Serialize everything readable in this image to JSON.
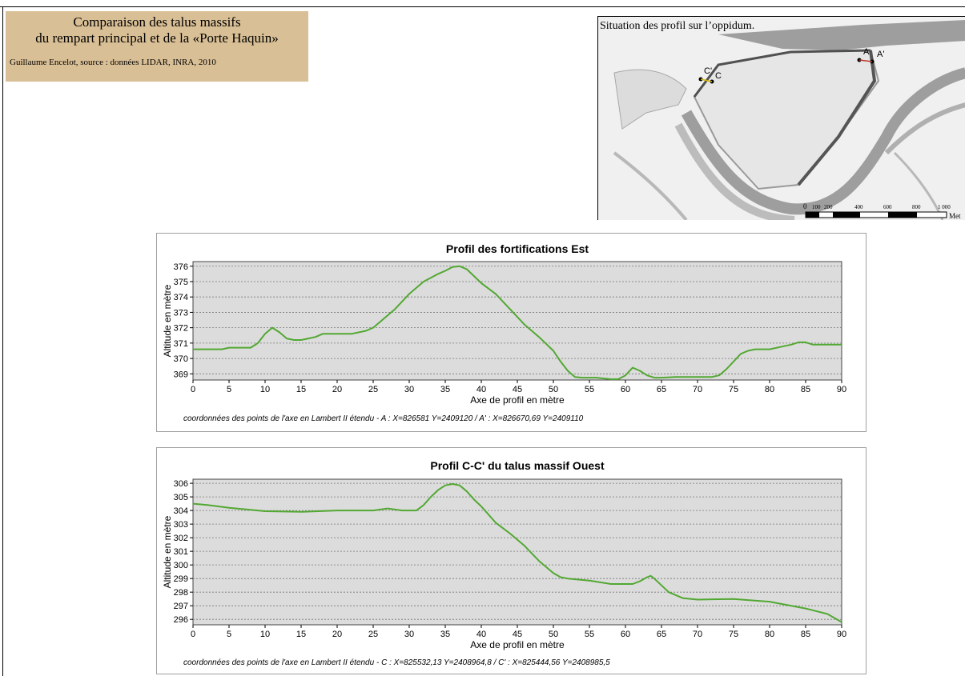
{
  "header": {
    "title_line1": "Comparaison des talus massifs",
    "title_line2": "du rempart principal et de la «Porte Haquin»",
    "credit": "Guillaume Encelot, source : données LIDAR, INRA, 2010"
  },
  "map": {
    "caption": "Situation des profil sur l’oppidum.",
    "point_labels": [
      "A",
      "A'",
      "C'",
      "C"
    ],
    "scale_labels": [
      "0",
      "100",
      "200",
      "400",
      "600",
      "800",
      "1 000"
    ],
    "scale_unit": "Met"
  },
  "chart_data": [
    {
      "type": "line",
      "title": "Profil des fortifications Est",
      "xlabel": "Axe de profil en mètre",
      "ylabel": "Altitude en mètre",
      "xlim": [
        0,
        90
      ],
      "ylim": [
        368.6,
        376.3
      ],
      "xticks": [
        0,
        5,
        10,
        15,
        20,
        25,
        30,
        35,
        40,
        45,
        50,
        55,
        60,
        65,
        70,
        75,
        80,
        85,
        90
      ],
      "yticks": [
        369,
        370,
        371,
        372,
        373,
        374,
        375,
        376
      ],
      "grid": "horizontal dotted",
      "line_color": "#52a832",
      "x": [
        0,
        2,
        4,
        5,
        8,
        9,
        10,
        11,
        12,
        13,
        14,
        15,
        16,
        17,
        18,
        19,
        20,
        22,
        24,
        25,
        26,
        28,
        30,
        32,
        34,
        35,
        36,
        37,
        38,
        40,
        42,
        44,
        45,
        46,
        48,
        50,
        51,
        52,
        53,
        54,
        55,
        56,
        57,
        58,
        59,
        60,
        61,
        62,
        63,
        64,
        65,
        67,
        70,
        72,
        73,
        74,
        75,
        76,
        77,
        78,
        80,
        82,
        83,
        84,
        85,
        86,
        88,
        90
      ],
      "y": [
        370.6,
        370.6,
        370.6,
        370.7,
        370.7,
        371.0,
        371.6,
        372.0,
        371.7,
        371.3,
        371.2,
        371.2,
        371.3,
        371.4,
        371.6,
        371.6,
        371.6,
        371.6,
        371.8,
        372.0,
        372.4,
        373.2,
        374.2,
        375.0,
        375.5,
        375.7,
        375.95,
        376.0,
        375.8,
        374.9,
        374.2,
        373.2,
        372.7,
        372.2,
        371.4,
        370.5,
        369.8,
        369.2,
        368.8,
        368.75,
        368.75,
        368.75,
        368.7,
        368.65,
        368.65,
        368.9,
        369.4,
        369.2,
        368.9,
        368.75,
        368.75,
        368.8,
        368.8,
        368.8,
        368.9,
        369.3,
        369.8,
        370.3,
        370.5,
        370.6,
        370.6,
        370.8,
        370.9,
        371.05,
        371.05,
        370.9,
        370.9,
        370.9
      ]
    },
    {
      "type": "line",
      "title": "Profil C-C' du talus massif Ouest",
      "xlabel": "Axe de profil en mètre",
      "ylabel": "Altitude en mètre",
      "xlim": [
        0,
        90
      ],
      "ylim": [
        295.6,
        306.3
      ],
      "xticks": [
        0,
        5,
        10,
        15,
        20,
        25,
        30,
        35,
        40,
        45,
        50,
        55,
        60,
        65,
        70,
        75,
        80,
        85,
        90
      ],
      "yticks": [
        296,
        297,
        298,
        299,
        300,
        301,
        302,
        303,
        304,
        305,
        306
      ],
      "grid": "horizontal dotted",
      "line_color": "#52a832",
      "x": [
        0,
        2,
        5,
        10,
        15,
        20,
        25,
        27,
        29,
        31,
        32,
        33,
        34,
        35,
        36,
        37,
        38,
        39,
        40,
        42,
        44,
        46,
        48,
        50,
        51,
        52,
        55,
        58,
        61,
        62,
        63,
        63.5,
        64,
        65,
        66,
        68,
        70,
        75,
        80,
        85,
        88,
        90
      ],
      "y": [
        304.5,
        304.4,
        304.2,
        303.95,
        303.9,
        304.0,
        304.0,
        304.15,
        304.0,
        304.0,
        304.4,
        305.0,
        305.5,
        305.85,
        305.95,
        305.85,
        305.4,
        304.8,
        304.3,
        303.1,
        302.3,
        301.4,
        300.3,
        299.4,
        299.1,
        299.0,
        298.85,
        298.6,
        298.6,
        298.8,
        299.1,
        299.2,
        299.0,
        298.5,
        298.0,
        297.55,
        297.45,
        297.5,
        297.3,
        296.8,
        296.4,
        295.8
      ]
    }
  ],
  "notes": {
    "profile1": "coordonnées des points de l'axe en Lambert II étendu - A : X=826581 Y=2409120   /  A' : X=826670,69 Y=2409110",
    "profile2": "coordonnées des points de l'axe en Lambert II étendu - C : X=825532,13 Y=2408964,8   /  C' : X=825444,56 Y=2408985,5"
  }
}
